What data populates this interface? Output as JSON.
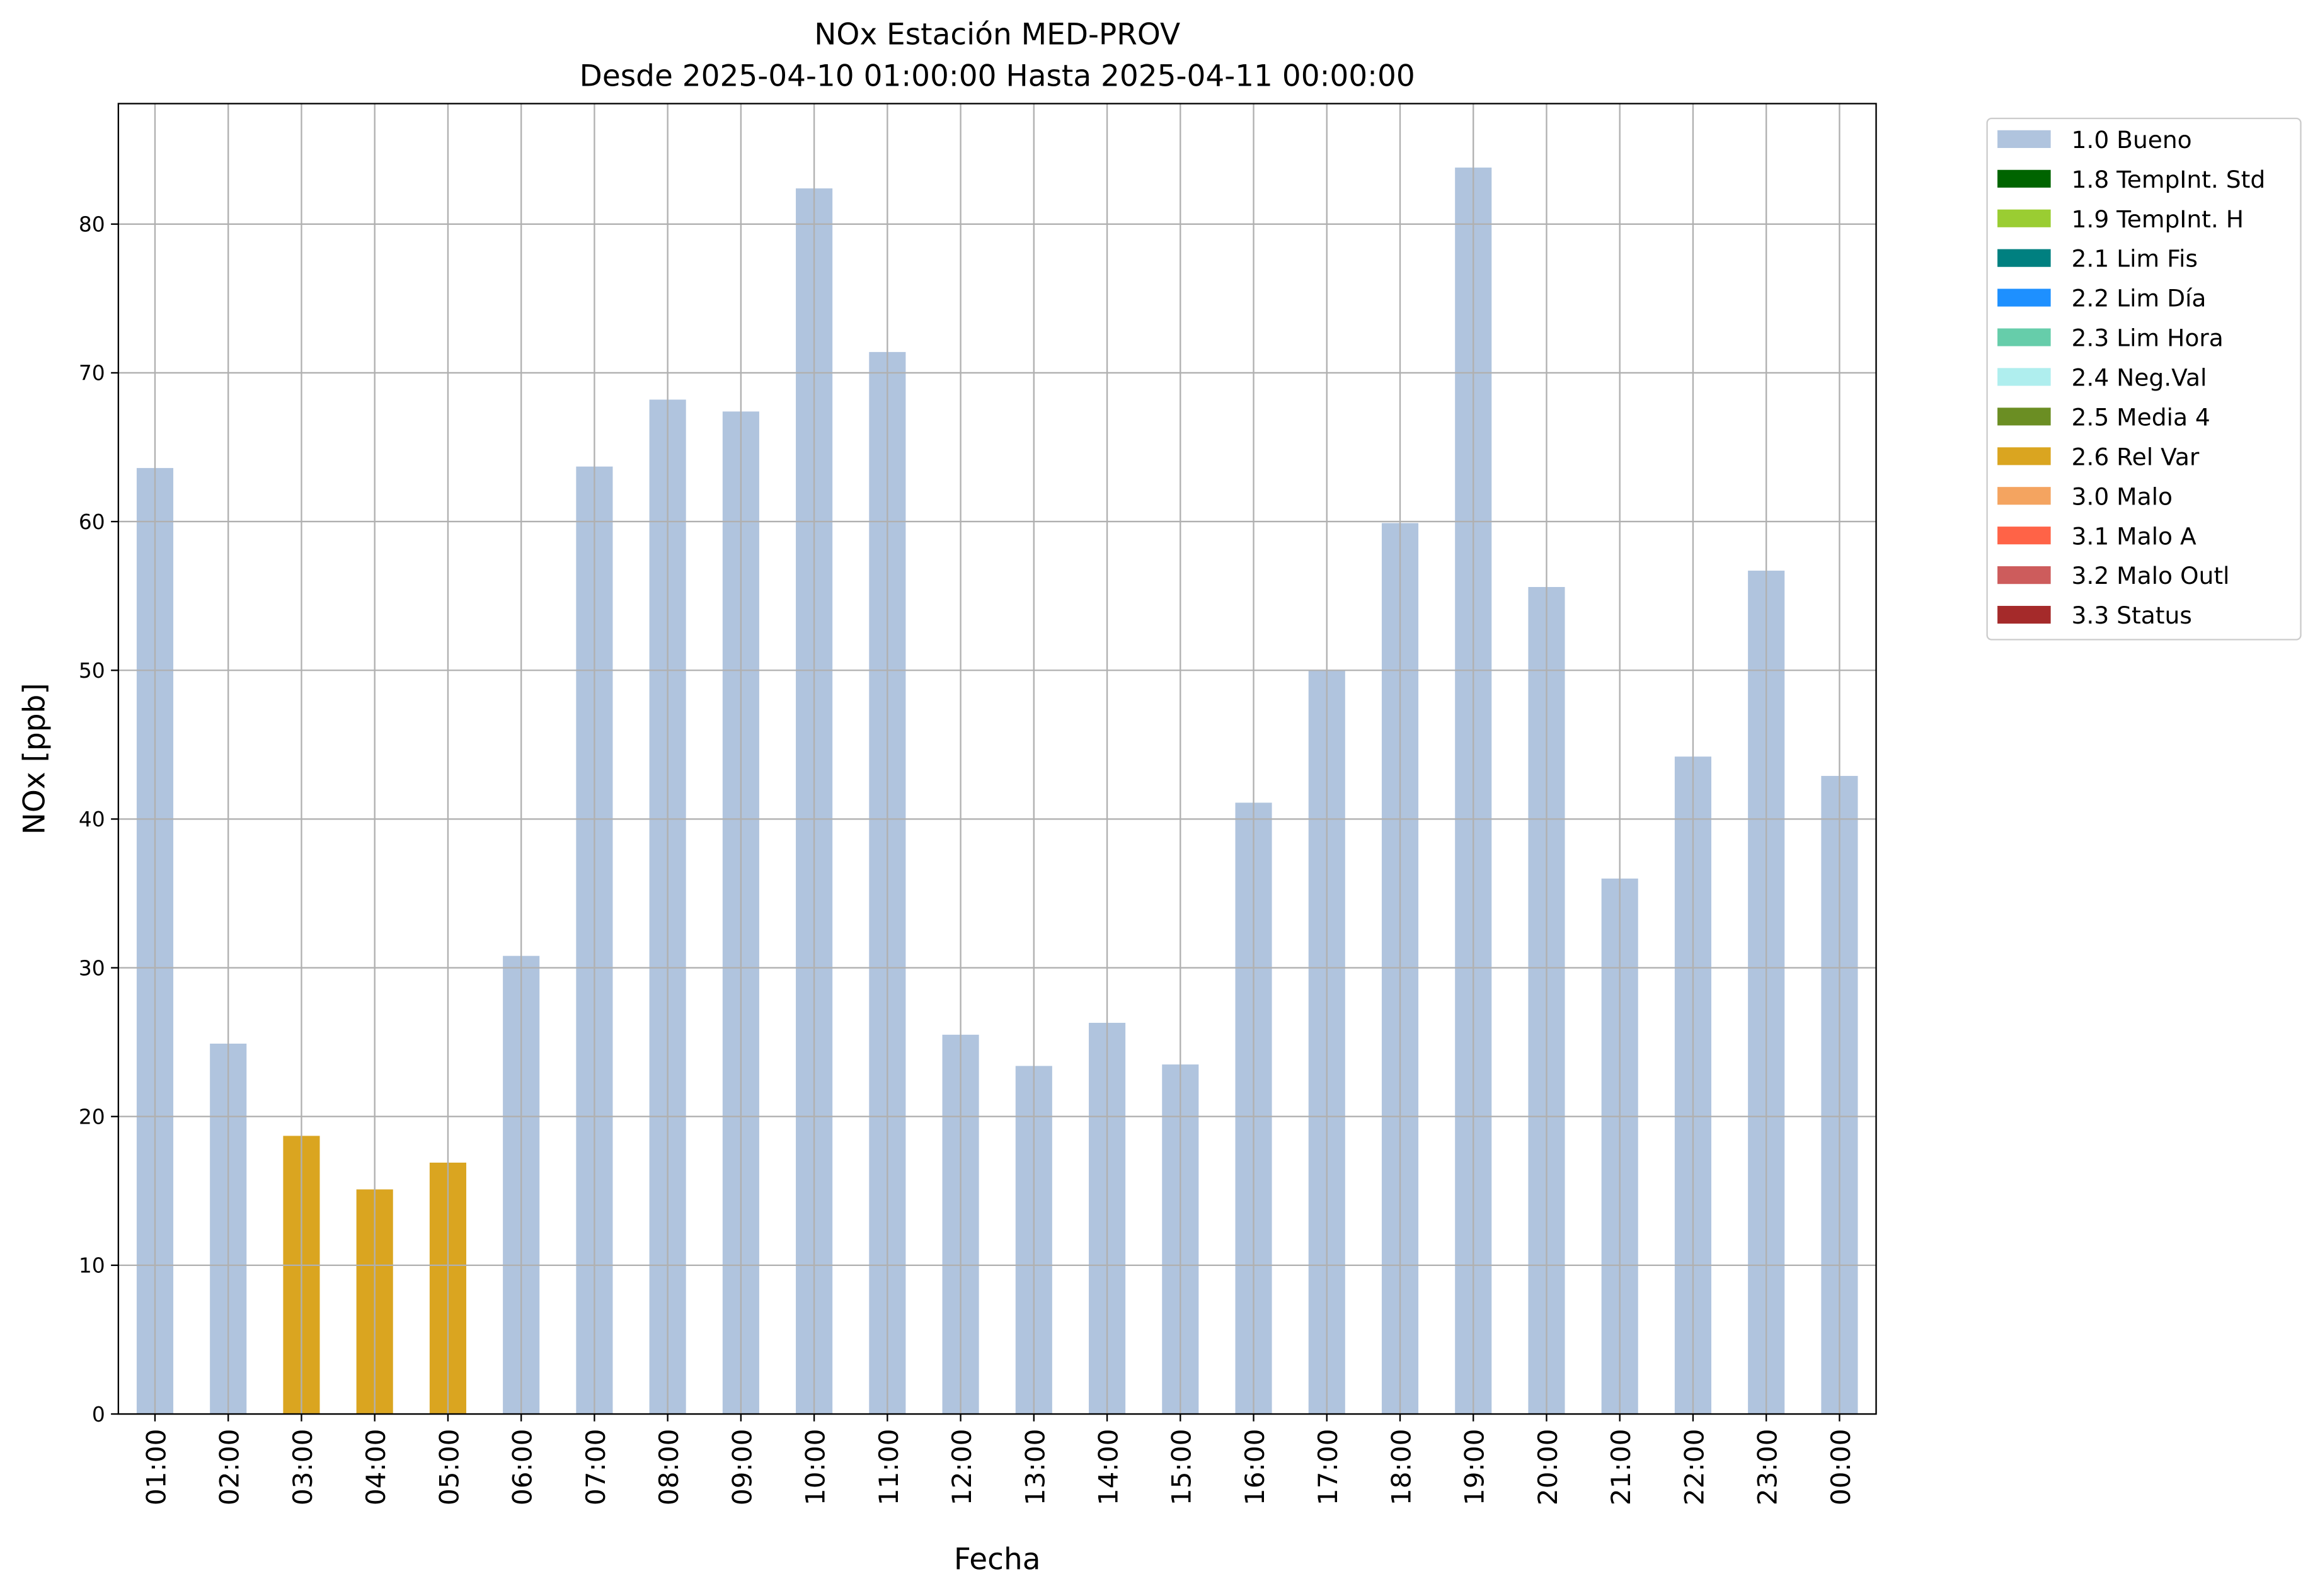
{
  "chart_data": {
    "type": "bar",
    "stacked": true,
    "title": "NOx Estación MED-PROV",
    "subtitle": "Desde 2025-04-10 01:00:00 Hasta 2025-04-11 00:00:00",
    "x_label": "Fecha",
    "y_label": "NOx [ppb]",
    "categories": [
      "01:00",
      "02:00",
      "03:00",
      "04:00",
      "05:00",
      "06:00",
      "07:00",
      "08:00",
      "09:00",
      "10:00",
      "11:00",
      "12:00",
      "13:00",
      "14:00",
      "15:00",
      "16:00",
      "17:00",
      "18:00",
      "19:00",
      "20:00",
      "21:00",
      "22:00",
      "23:00",
      "00:00"
    ],
    "series": [
      {
        "name": "1.0 Bueno",
        "color": "#b0c4de",
        "values": [
          63.6,
          24.9,
          null,
          null,
          null,
          30.8,
          63.7,
          68.2,
          67.4,
          82.4,
          71.4,
          25.5,
          23.4,
          26.3,
          23.5,
          41.1,
          50.0,
          59.9,
          83.8,
          55.6,
          36.0,
          44.2,
          56.7,
          42.9
        ]
      },
      {
        "name": "1.8 TempInt. Std",
        "color": "#006400",
        "values": [
          null,
          null,
          null,
          null,
          null,
          null,
          null,
          null,
          null,
          null,
          null,
          null,
          null,
          null,
          null,
          null,
          null,
          null,
          null,
          null,
          null,
          null,
          null,
          null
        ]
      },
      {
        "name": "1.9 TempInt. H",
        "color": "#9acd32",
        "values": [
          null,
          null,
          null,
          null,
          null,
          null,
          null,
          null,
          null,
          null,
          null,
          null,
          null,
          null,
          null,
          null,
          null,
          null,
          null,
          null,
          null,
          null,
          null,
          null
        ]
      },
      {
        "name": "2.1 Lim Fis",
        "color": "#008080",
        "values": [
          null,
          null,
          null,
          null,
          null,
          null,
          null,
          null,
          null,
          null,
          null,
          null,
          null,
          null,
          null,
          null,
          null,
          null,
          null,
          null,
          null,
          null,
          null,
          null
        ]
      },
      {
        "name": "2.2 Lim Día",
        "color": "#1e90ff",
        "values": [
          null,
          null,
          null,
          null,
          null,
          null,
          null,
          null,
          null,
          null,
          null,
          null,
          null,
          null,
          null,
          null,
          null,
          null,
          null,
          null,
          null,
          null,
          null,
          null
        ]
      },
      {
        "name": "2.3 Lim Hora",
        "color": "#66cdaa",
        "values": [
          null,
          null,
          null,
          null,
          null,
          null,
          null,
          null,
          null,
          null,
          null,
          null,
          null,
          null,
          null,
          null,
          null,
          null,
          null,
          null,
          null,
          null,
          null,
          null
        ]
      },
      {
        "name": "2.4 Neg.Val",
        "color": "#afeeee",
        "values": [
          null,
          null,
          null,
          null,
          null,
          null,
          null,
          null,
          null,
          null,
          null,
          null,
          null,
          null,
          null,
          null,
          null,
          null,
          null,
          null,
          null,
          null,
          null,
          null
        ]
      },
      {
        "name": "2.5 Media 4",
        "color": "#6b8e23",
        "values": [
          null,
          null,
          null,
          null,
          null,
          null,
          null,
          null,
          null,
          null,
          null,
          null,
          null,
          null,
          null,
          null,
          null,
          null,
          null,
          null,
          null,
          null,
          null,
          null
        ]
      },
      {
        "name": "2.6 Rel Var",
        "color": "#daa520",
        "values": [
          null,
          null,
          18.7,
          15.1,
          16.9,
          null,
          null,
          null,
          null,
          null,
          null,
          null,
          null,
          null,
          null,
          null,
          null,
          null,
          null,
          null,
          null,
          null,
          null,
          null
        ]
      },
      {
        "name": "3.0 Malo",
        "color": "#f4a460",
        "values": [
          null,
          null,
          null,
          null,
          null,
          null,
          null,
          null,
          null,
          null,
          null,
          null,
          null,
          null,
          null,
          null,
          null,
          null,
          null,
          null,
          null,
          null,
          null,
          null
        ]
      },
      {
        "name": "3.1 Malo A",
        "color": "#ff6347",
        "values": [
          null,
          null,
          null,
          null,
          null,
          null,
          null,
          null,
          null,
          null,
          null,
          null,
          null,
          null,
          null,
          null,
          null,
          null,
          null,
          null,
          null,
          null,
          null,
          null
        ]
      },
      {
        "name": "3.2 Malo Outl",
        "color": "#cd5c5c",
        "values": [
          null,
          null,
          null,
          null,
          null,
          null,
          null,
          null,
          null,
          null,
          null,
          null,
          null,
          null,
          null,
          null,
          null,
          null,
          null,
          null,
          null,
          null,
          null,
          null
        ]
      },
      {
        "name": "3.3 Status",
        "color": "#a52a2a",
        "values": [
          null,
          null,
          null,
          null,
          null,
          null,
          null,
          null,
          null,
          null,
          null,
          null,
          null,
          null,
          null,
          null,
          null,
          null,
          null,
          null,
          null,
          null,
          null,
          null
        ]
      }
    ],
    "ylim": [
      0,
      88.1
    ],
    "yticks": [
      0,
      10,
      20,
      30,
      40,
      50,
      60,
      70,
      80
    ],
    "grid": true,
    "legend": "outside-right"
  }
}
